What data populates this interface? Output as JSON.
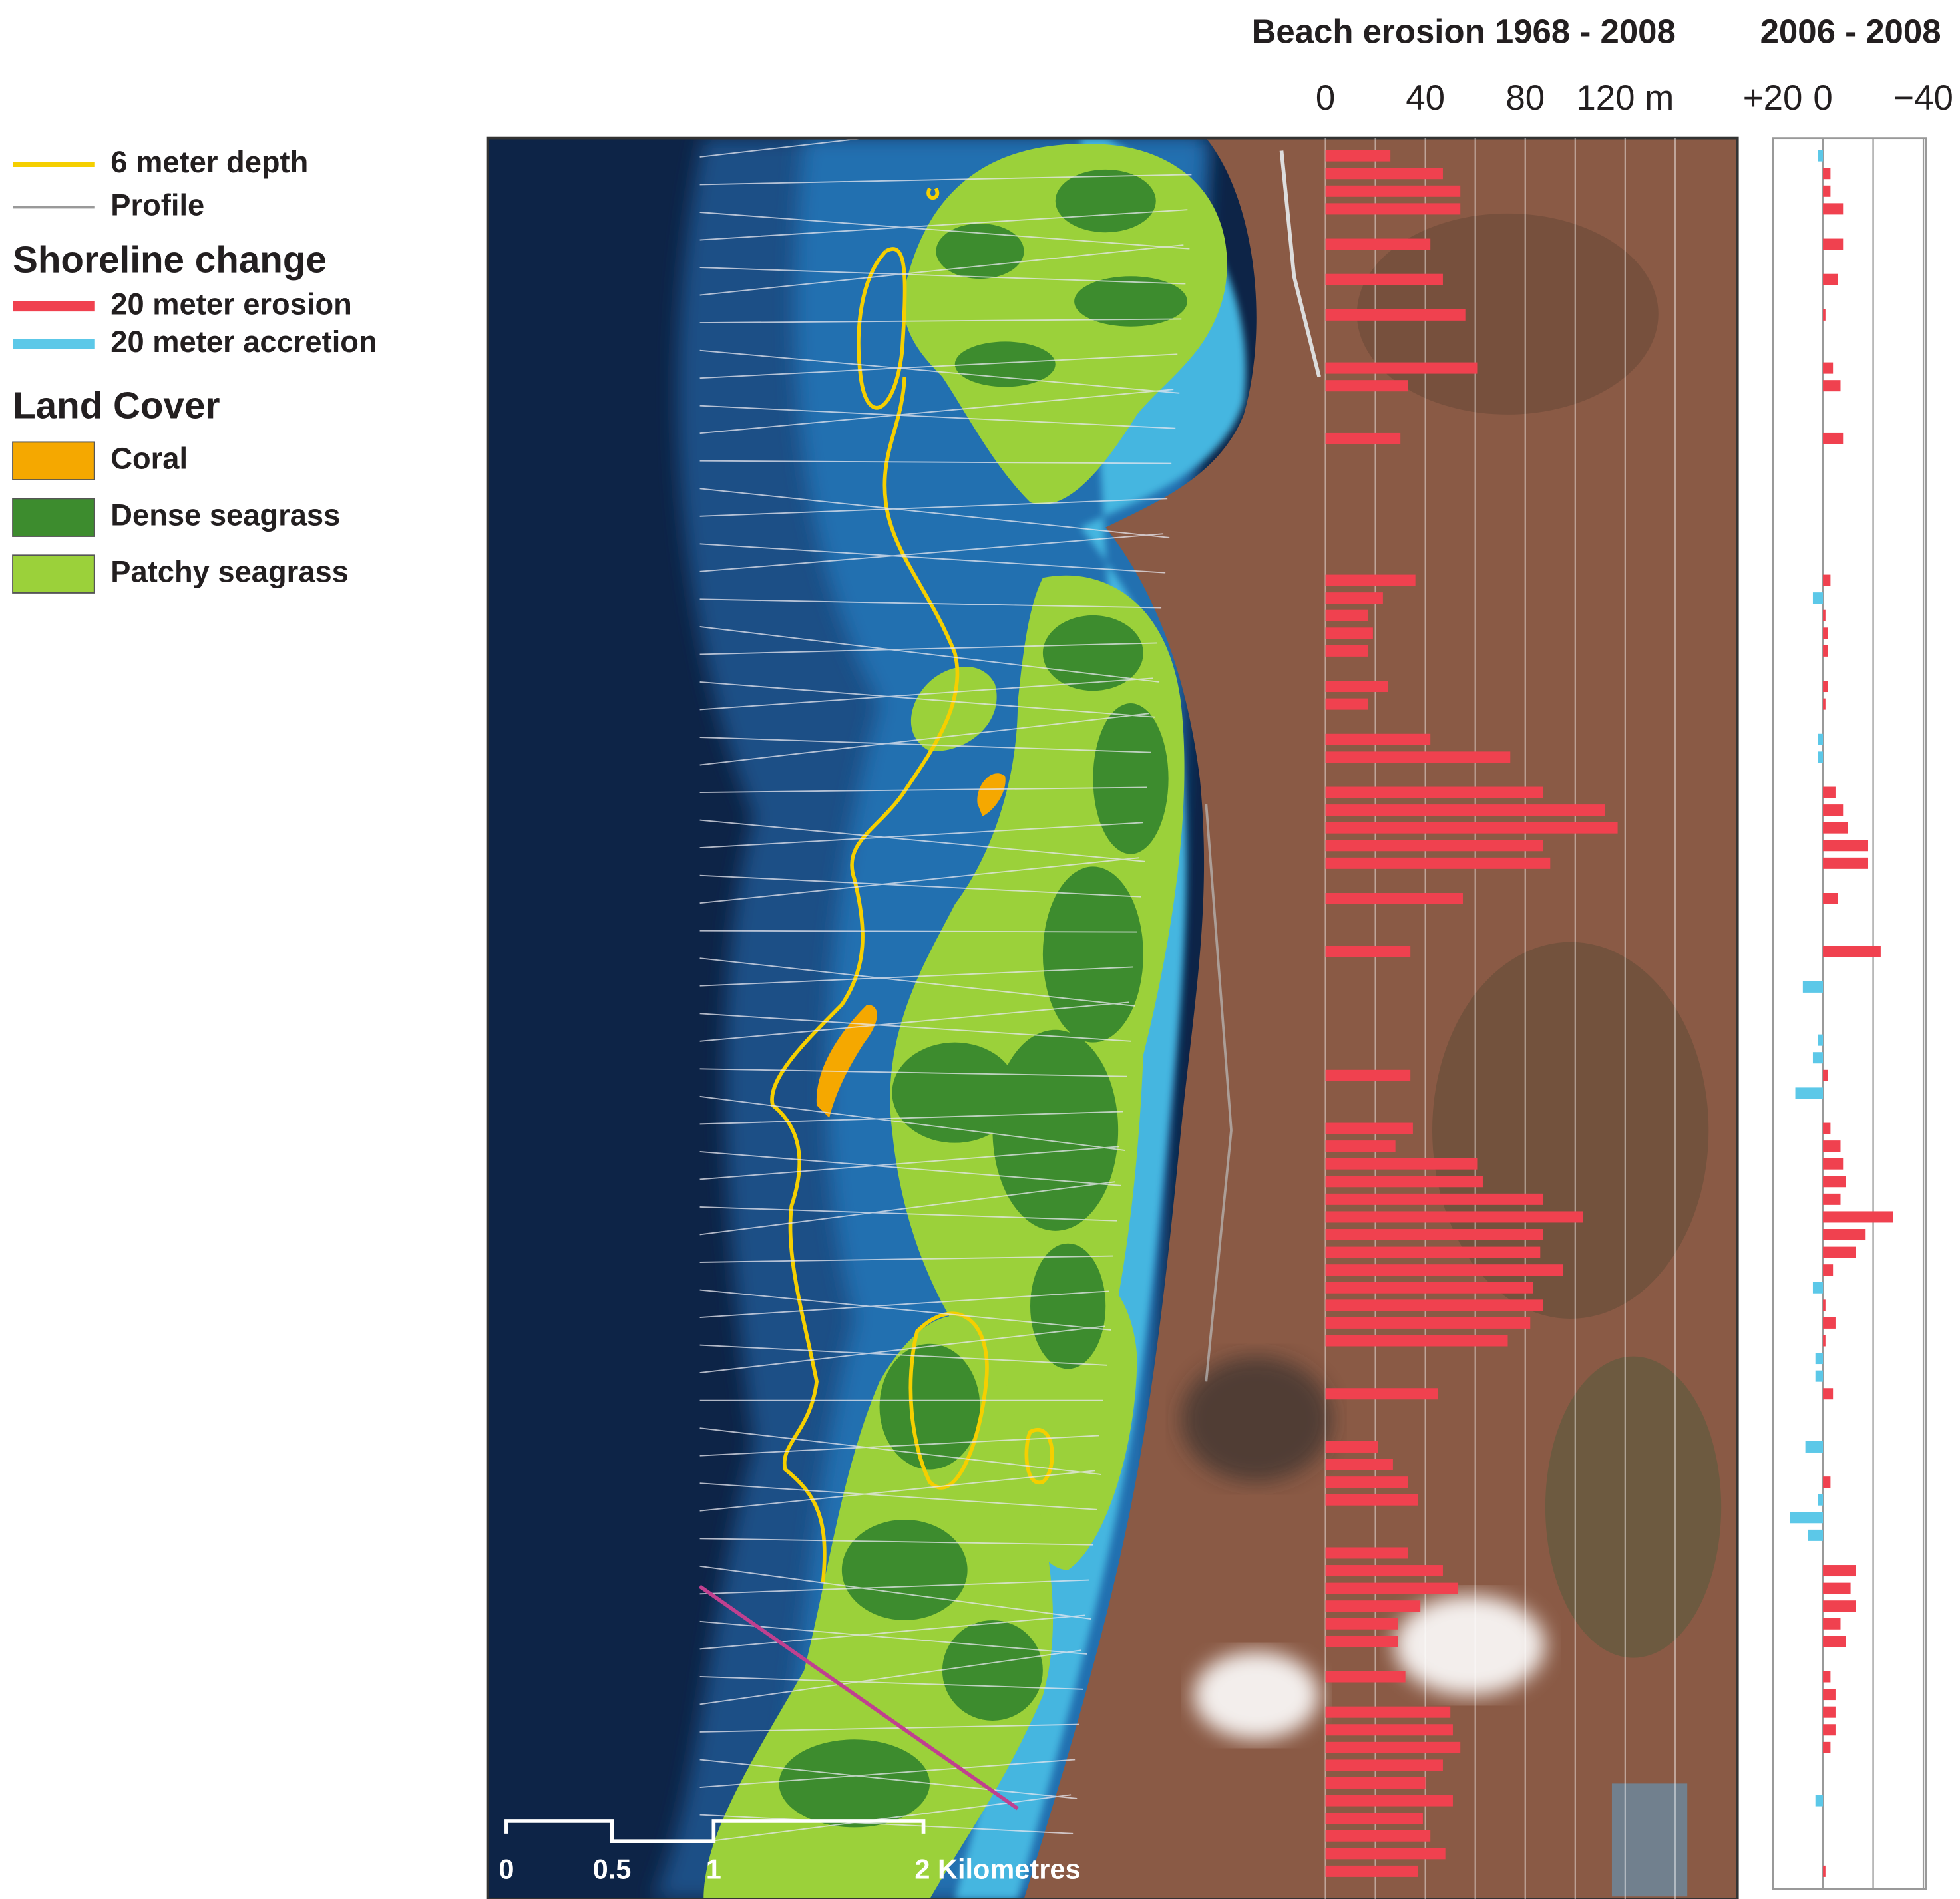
{
  "map": {
    "legend": {
      "depth_line": "6 meter depth",
      "profile": "Profile",
      "shoreline_title": "Shoreline change",
      "erosion": "20 meter erosion",
      "accretion": "20 meter accretion",
      "landcover_title": "Land Cover",
      "coral": "Coral",
      "dense": "Dense seagrass",
      "patchy": "Patchy seagrass"
    },
    "scale_bar": [
      "0",
      "0.5",
      "1",
      "2 Kilometres"
    ]
  },
  "chart_data": [
    {
      "type": "hbar",
      "title": "Beach erosion 1968 - 2008",
      "color": "#f0414f",
      "categories": [
        null,
        null,
        null,
        null,
        null,
        null,
        null,
        null,
        null,
        null,
        null,
        null,
        null,
        null,
        null,
        null,
        null,
        null,
        null,
        null,
        null,
        null,
        null,
        null,
        null,
        null,
        null,
        null,
        null,
        null,
        null,
        null,
        null,
        null,
        null,
        null,
        null,
        null,
        null,
        null,
        null,
        null,
        null,
        null,
        null,
        null,
        null,
        null,
        null,
        null,
        null,
        null,
        null,
        null,
        null,
        null,
        null,
        null,
        null,
        null,
        null,
        null,
        null,
        null,
        null,
        null,
        null,
        null,
        null,
        null,
        null,
        null,
        null,
        null,
        null,
        null,
        null,
        null,
        null,
        null,
        null,
        null,
        null,
        null,
        null,
        null,
        null,
        null,
        null,
        null,
        null,
        null,
        null,
        null,
        null,
        null,
        null,
        null
      ],
      "values": [
        26,
        47,
        54,
        54,
        null,
        42,
        null,
        47,
        null,
        56,
        null,
        null,
        61,
        33,
        null,
        null,
        30,
        null,
        null,
        null,
        null,
        null,
        null,
        null,
        36,
        23,
        17,
        19,
        17,
        null,
        25,
        17,
        null,
        42,
        74,
        null,
        87,
        112,
        117,
        87,
        90,
        null,
        55,
        null,
        null,
        34,
        null,
        null,
        null,
        null,
        null,
        null,
        34,
        null,
        null,
        35,
        28,
        61,
        63,
        87,
        103,
        87,
        86,
        95,
        83,
        87,
        82,
        73,
        null,
        null,
        45,
        null,
        null,
        21,
        27,
        33,
        37,
        null,
        null,
        33,
        47,
        53,
        38,
        29,
        29,
        null,
        32,
        null,
        50,
        51,
        54,
        47,
        40,
        51,
        39,
        42,
        48,
        37
      ],
      "xlim": [
        0,
        165
      ],
      "xticks": [
        0,
        40,
        80,
        {
          "value": 120,
          "label": "120 m"
        }
      ],
      "grid_xticks": [
        20,
        60,
        100,
        140
      ],
      "grid": true
    },
    {
      "type": "hbar",
      "title": "2006 - 2008",
      "color_negative": "#f0414f",
      "color_positive": "#5cc8e8",
      "categories": [
        null,
        null,
        null,
        null,
        null,
        null,
        null,
        null,
        null,
        null,
        null,
        null,
        null,
        null,
        null,
        null,
        null,
        null,
        null,
        null,
        null,
        null,
        null,
        null,
        null,
        null,
        null,
        null,
        null,
        null,
        null,
        null,
        null,
        null,
        null,
        null,
        null,
        null,
        null,
        null,
        null,
        null,
        null,
        null,
        null,
        null,
        null,
        null,
        null,
        null,
        null,
        null,
        null,
        null,
        null,
        null,
        null,
        null,
        null,
        null,
        null,
        null,
        null,
        null,
        null,
        null,
        null,
        null,
        null,
        null,
        null,
        null,
        null,
        null,
        null,
        null,
        null,
        null,
        null,
        null,
        null,
        null,
        null,
        null,
        null,
        null,
        null,
        null,
        null,
        null,
        null,
        null,
        null,
        null,
        null,
        null,
        null,
        null
      ],
      "values": [
        2,
        -3,
        -3,
        -8,
        null,
        -8,
        null,
        -6,
        null,
        -1,
        null,
        null,
        -4,
        -7,
        null,
        null,
        -8,
        null,
        null,
        null,
        null,
        null,
        null,
        null,
        -3,
        4,
        -1,
        -2,
        -2,
        null,
        -2,
        -1,
        null,
        2,
        2,
        null,
        -5,
        -8,
        -10,
        -18,
        -18,
        null,
        -6,
        null,
        null,
        -23,
        null,
        8,
        null,
        null,
        2,
        4,
        -2,
        11,
        null,
        -3,
        -7,
        -8,
        -9,
        -7,
        -28,
        -17,
        -13,
        -4,
        4,
        -1,
        -5,
        -1,
        3,
        3,
        -4,
        null,
        null,
        7,
        null,
        -3,
        2,
        13,
        6,
        null,
        -13,
        -11,
        -13,
        -7,
        -9,
        null,
        -3,
        -5,
        -5,
        -5,
        -3,
        null,
        null,
        3,
        null,
        null,
        null,
        -1
      ],
      "xlim": [
        20,
        -40
      ],
      "xticks": [
        {
          "value": 20,
          "label": "+20"
        },
        0,
        {
          "value": -40,
          "label": "−40"
        }
      ],
      "grid_xticks": [
        -20
      ],
      "grid": true
    }
  ]
}
